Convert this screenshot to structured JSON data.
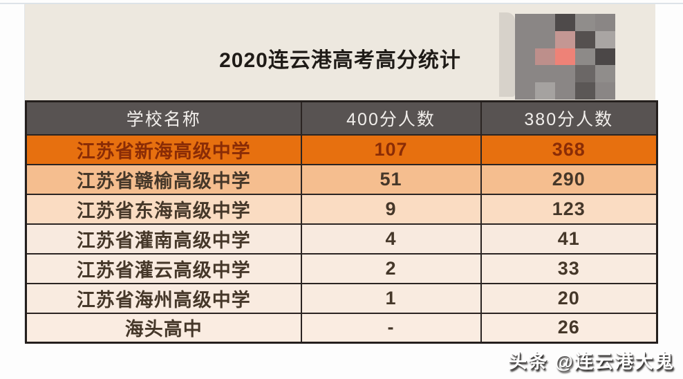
{
  "title": "2020连云港高考高分统计",
  "panel_background": "#ede8df",
  "table": {
    "headers": [
      "学校名称",
      "400分人数",
      "380分人数"
    ],
    "header_bg": "#585352",
    "header_text_color": "#f2efec",
    "border_color": "#2b2422",
    "rows": [
      {
        "school": "江苏省新海高级中学",
        "s400": "107",
        "s380": "368",
        "bg": "#e7700f",
        "color": "#8a2c06"
      },
      {
        "school": "江苏省赣榆高级中学",
        "s400": "51",
        "s380": "290",
        "bg": "#f5be8f",
        "color": "#453729"
      },
      {
        "school": "江苏省东海高级中学",
        "s400": "9",
        "s380": "123",
        "bg": "#fadcc2",
        "color": "#453729"
      },
      {
        "school": "江苏省灌南高级中学",
        "s400": "4",
        "s380": "41",
        "bg": "#f8eadf",
        "color": "#453729"
      },
      {
        "school": "江苏省灌云高级中学",
        "s400": "2",
        "s380": "33",
        "bg": "#f9ebe0",
        "color": "#453729"
      },
      {
        "school": "江苏省海州高级中学",
        "s400": "1",
        "s380": "20",
        "bg": "#f9ebe0",
        "color": "#453729"
      },
      {
        "school": "海头高中",
        "s400": "-",
        "s380": "26",
        "bg": "#faece1",
        "color": "#453729"
      }
    ]
  },
  "chart_data": {
    "type": "table",
    "title": "2020连云港高考高分统计",
    "columns": [
      "学校名称",
      "400分人数",
      "380分人数"
    ],
    "rows": [
      [
        "江苏省新海高级中学",
        107,
        368
      ],
      [
        "江苏省赣榆高级中学",
        51,
        290
      ],
      [
        "江苏省东海高级中学",
        9,
        123
      ],
      [
        "江苏省灌南高级中学",
        4,
        41
      ],
      [
        "江苏省灌云高级中学",
        2,
        33
      ],
      [
        "江苏省海州高级中学",
        1,
        20
      ],
      [
        "海头高中",
        "-",
        26
      ]
    ]
  },
  "watermark": "头条 @连云港大鬼",
  "mosaic": {
    "base": "#8a8685",
    "strip_color": "#d7d2ca",
    "grid": [
      [
        "#8a8685",
        "#8a8685",
        "#4e4a4a",
        "#908d8b",
        "#8a8685"
      ],
      [
        "#8a8685",
        "#8a8685",
        "#c49793",
        "#55504f",
        "#a9a5a3"
      ],
      [
        "#8a8685",
        "#bd8f8b",
        "#ee8277",
        "#8d8a88",
        "#4b4747"
      ],
      [
        "#8a8685",
        "#8a8685",
        "#8a8685",
        "#6b6766",
        "#908d8b"
      ],
      [
        "#8a8685",
        "#a5a2a0",
        "#8a8685",
        "#5b5756",
        "#8a8685"
      ]
    ]
  }
}
